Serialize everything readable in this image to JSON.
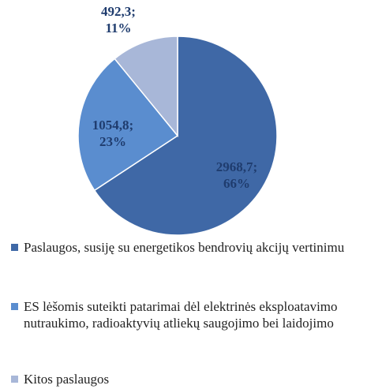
{
  "chart_data": {
    "type": "pie",
    "categories": [
      "Paslaugos, susiję su energetikos bendrovių akcijų vertinimu",
      "ES lėšomis suteikti patarimai dėl elektrinės eksploatavimo nutraukimo, radioaktyvių atliekų saugojimo bei laidojimo",
      "Kitos paslaugos"
    ],
    "values": [
      2968.7,
      1054.8,
      492.3
    ],
    "value_labels": [
      "2968,7; 66%",
      "1054,8; 23%",
      "492,3; 11%"
    ],
    "colors": [
      "#3f68a6",
      "#5a8dcf",
      "#a8b7d8"
    ]
  }
}
